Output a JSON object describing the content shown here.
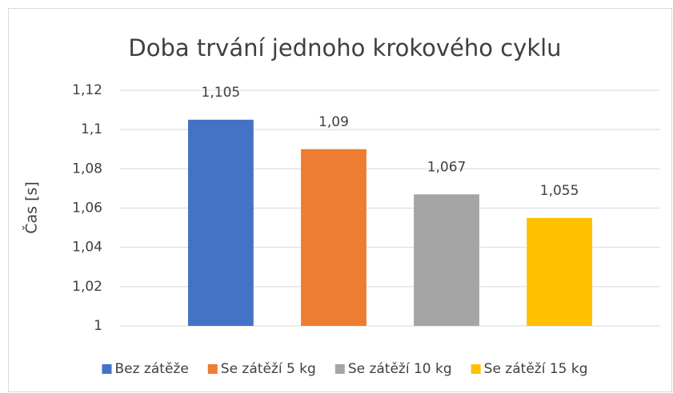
{
  "chart_data": {
    "type": "bar",
    "title": "Doba trvání jednoho krokového cyklu",
    "y_label": "Čas [s]",
    "categories": [
      null
    ],
    "series": [
      {
        "name": "Bez zátěže",
        "color": "#4472c4",
        "values": [
          1.105
        ],
        "value_labels": [
          "1,105"
        ]
      },
      {
        "name": "Se zátěží 5 kg",
        "color": "#ed7d31",
        "values": [
          1.09
        ],
        "value_labels": [
          "1,09"
        ]
      },
      {
        "name": "Se zátěží 10 kg",
        "color": "#a5a5a5",
        "values": [
          1.067
        ],
        "value_labels": [
          "1,067"
        ]
      },
      {
        "name": "Se zátěží 15 kg",
        "color": "#ffc000",
        "values": [
          1.055
        ],
        "value_labels": [
          "1,055"
        ]
      }
    ],
    "ylim": [
      1,
      1.12
    ],
    "yticks": [
      1,
      {
        "value": 1.02,
        "label": "1,02"
      },
      {
        "value": 1.04,
        "label": "1,04"
      },
      {
        "value": 1.06,
        "label": "1,06"
      },
      {
        "value": 1.08,
        "label": "1,08"
      },
      {
        "value": 1.1,
        "label": "1,1"
      },
      {
        "value": 1.12,
        "label": "1,12"
      }
    ],
    "grid": true,
    "legend": "bottom"
  }
}
